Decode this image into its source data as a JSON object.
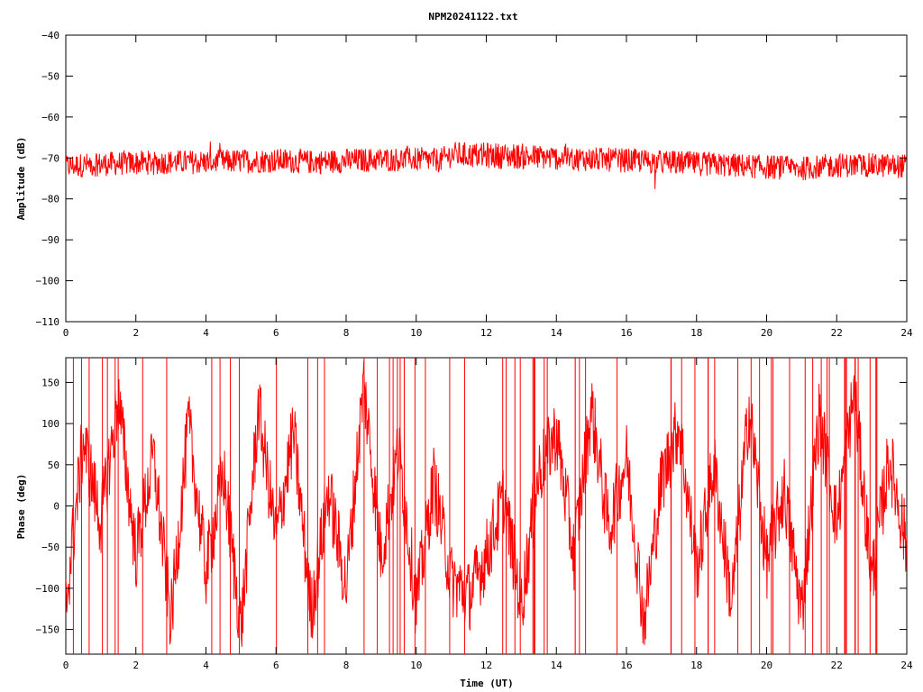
{
  "chart_data": [
    {
      "type": "line",
      "title": "NPM20241122.txt",
      "xlabel": "",
      "ylabel": "Amplitude (dB)",
      "xlim": [
        0,
        24
      ],
      "ylim": [
        -110,
        -40
      ],
      "x_ticks": [
        "0",
        "2",
        "4",
        "6",
        "8",
        "10",
        "12",
        "14",
        "16",
        "18",
        "20",
        "22",
        "24"
      ],
      "y_ticks": [
        "-40",
        "-50",
        "-60",
        "-70",
        "-80",
        "-90",
        "-100",
        "-110"
      ],
      "grid": false,
      "series": [
        {
          "color": "#ff0000",
          "x": [
            0,
            1,
            2,
            3,
            4,
            5,
            6,
            7,
            8,
            9,
            10,
            10.7,
            11,
            12,
            13,
            14,
            15,
            16,
            17,
            18,
            19,
            20,
            21,
            22,
            23,
            24
          ],
          "center": [
            -72,
            -71.5,
            -71.2,
            -71,
            -71,
            -70.8,
            -70.6,
            -71,
            -70.7,
            -70.4,
            -70.3,
            -70.6,
            -69.2,
            -69.4,
            -69.6,
            -70,
            -70.3,
            -70.6,
            -71,
            -71.4,
            -71.8,
            -72.2,
            -72.6,
            -71.8,
            -71.8,
            -72
          ],
          "spread": [
            3,
            3,
            3,
            3,
            3,
            3,
            3,
            3,
            3,
            3,
            3,
            3,
            3.2,
            3.2,
            3.2,
            3,
            3,
            3,
            3,
            3,
            3,
            3,
            3,
            3,
            3,
            3
          ]
        }
      ]
    },
    {
      "type": "line",
      "title": "",
      "xlabel": "Time (UT)",
      "ylabel": "Phase (deg)",
      "xlim": [
        0,
        24
      ],
      "ylim": [
        -180,
        180
      ],
      "x_ticks": [
        "0",
        "2",
        "4",
        "6",
        "8",
        "10",
        "12",
        "14",
        "16",
        "18",
        "20",
        "22",
        "24"
      ],
      "y_ticks": [
        "150",
        "100",
        "50",
        "0",
        "-50",
        "-100",
        "-150"
      ],
      "grid": false,
      "series": [
        {
          "color": "#ff0000",
          "x": [
            0,
            0.5,
            1.0,
            1.5,
            2.0,
            2.5,
            3.0,
            3.5,
            4.0,
            4.5,
            5.0,
            5.5,
            6.0,
            6.5,
            7.0,
            7.5,
            8.0,
            8.5,
            9.0,
            9.5,
            10.0,
            10.5,
            11.0,
            11.5,
            12.0,
            12.5,
            13.0,
            13.5,
            14.0,
            14.5,
            15.0,
            15.5,
            16.0,
            16.5,
            17.0,
            17.5,
            18.0,
            18.5,
            19.0,
            19.5,
            20.0,
            20.5,
            21.0,
            21.5,
            22.0,
            22.5,
            23.0,
            23.5,
            24.0
          ],
          "y": [
            -120,
            80,
            -20,
            130,
            -60,
            60,
            -140,
            100,
            -80,
            40,
            -150,
            120,
            -40,
            90,
            -130,
            20,
            -100,
            150,
            -60,
            70,
            -120,
            30,
            -90,
            -110,
            -60,
            10,
            -120,
            40,
            90,
            -60,
            120,
            -30,
            60,
            -140,
            30,
            100,
            -80,
            50,
            -120,
            120,
            -70,
            20,
            -130,
            110,
            -20,
            140,
            -90,
            60,
            -50
          ]
        }
      ]
    }
  ]
}
